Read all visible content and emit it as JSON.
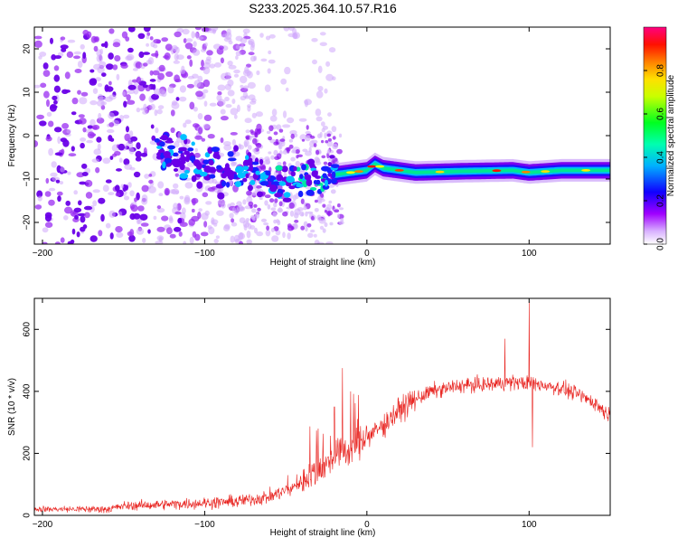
{
  "title": "S233.2025.364.10.57.R16",
  "colors": {
    "snr_line": "#e8221e",
    "axis": "#000000",
    "spec_base": "#8a00e6"
  },
  "chart_data": [
    {
      "type": "heatmap",
      "name": "spectrogram",
      "xlabel": "Height of straight line (km)",
      "ylabel": "Frequency (Hz)",
      "xlim": [
        -205,
        150
      ],
      "ylim": [
        -25,
        25
      ],
      "xticks": [
        -200,
        -100,
        0,
        100
      ],
      "yticks": [
        -20,
        -10,
        0,
        10,
        20
      ],
      "colorbar": {
        "label": "Normalized spectral amplitude",
        "range": [
          0,
          1
        ],
        "ticks": [
          0.0,
          0.2,
          0.4,
          0.6,
          0.8
        ],
        "tick_labels": [
          "0.0",
          "0.2",
          "0.4",
          "0.6",
          "0.8"
        ],
        "colors": [
          "#ffffff",
          "#a000ff",
          "#0000ff",
          "#00e0ff",
          "#00ff40",
          "#ffff00",
          "#ff8000",
          "#ff0000",
          "#ff0080"
        ]
      },
      "signal_track": {
        "description_free": true,
        "points": [
          [
            -125,
            -4
          ],
          [
            -100,
            -7
          ],
          [
            -75,
            -8.5
          ],
          [
            -55,
            -11
          ],
          [
            -40,
            -11
          ],
          [
            -30,
            -10
          ],
          [
            -20,
            -9
          ],
          [
            -10,
            -8.5
          ],
          [
            0,
            -8
          ],
          [
            5,
            -6.5
          ],
          [
            10,
            -7.5
          ],
          [
            30,
            -8.5
          ],
          [
            60,
            -8.2
          ],
          [
            90,
            -8
          ],
          [
            100,
            -8.5
          ],
          [
            120,
            -8
          ],
          [
            150,
            -8
          ]
        ]
      },
      "noise_region": {
        "x_range": [
          -205,
          -20
        ],
        "freq_range": [
          -25,
          25
        ]
      }
    },
    {
      "type": "line",
      "name": "snr",
      "xlabel": "Height of straight line (km)",
      "ylabel": "SNR (10 * v/v)",
      "xlim": [
        -205,
        150
      ],
      "ylim": [
        0,
        700
      ],
      "xticks": [
        -200,
        -100,
        0,
        100
      ],
      "yticks": [
        0,
        200,
        400,
        600
      ],
      "series": [
        {
          "name": "SNR",
          "envelope_x": [
            -205,
            -160,
            -150,
            -100,
            -80,
            -60,
            -45,
            -35,
            -25,
            -20,
            -15,
            -10,
            -5,
            0,
            10,
            20,
            30,
            40,
            50,
            60,
            70,
            80,
            90,
            100,
            110,
            120,
            130,
            140,
            150
          ],
          "envelope_y": [
            20,
            20,
            30,
            40,
            45,
            60,
            90,
            130,
            160,
            190,
            200,
            215,
            230,
            250,
            290,
            340,
            375,
            400,
            410,
            420,
            420,
            425,
            430,
            425,
            420,
            410,
            390,
            365,
            320
          ],
          "spikes": [
            [
              -30,
              280
            ],
            [
              -20,
              350
            ],
            [
              -15,
              475
            ],
            [
              -10,
              400
            ],
            [
              85,
              570
            ],
            [
              100,
              690
            ],
            [
              102,
              220
            ]
          ]
        }
      ]
    }
  ]
}
